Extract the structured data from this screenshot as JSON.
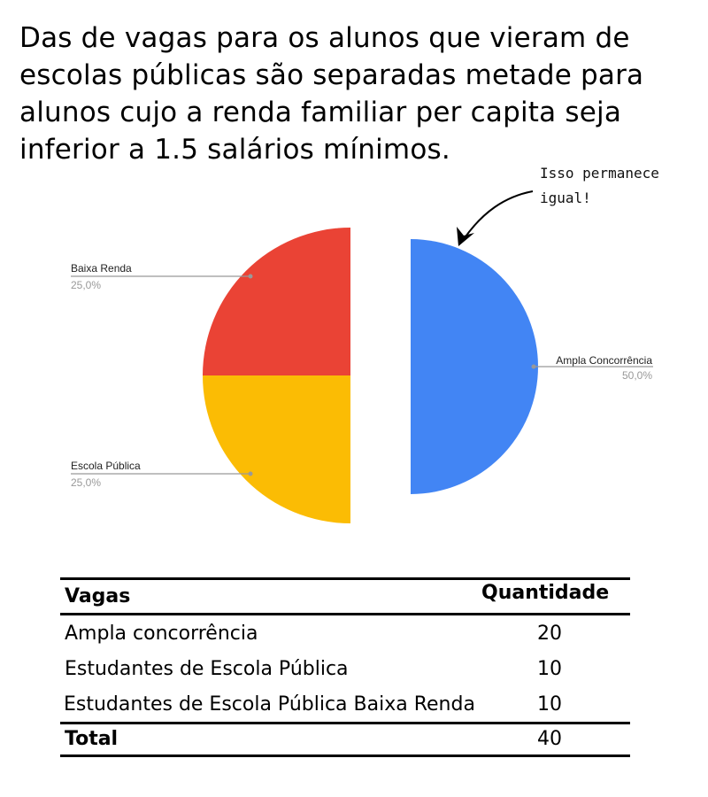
{
  "heading": "Das de vagas para os alunos que vieram de escolas públicas são separadas metade para alunos cujo a renda familiar per capita seja inferior a 1.5 salários mínimos.",
  "chart_data": {
    "type": "pie",
    "slices": [
      {
        "label": "Ampla Concorrência",
        "value": 50.0,
        "pct_label": "50,0%",
        "color": "#4285F4"
      },
      {
        "label": "Baixa Renda",
        "value": 25.0,
        "pct_label": "25,0%",
        "color": "#FBBC04"
      },
      {
        "label": "Escola Pública",
        "value": 25.0,
        "pct_label": "25,0%",
        "color": "#EA4335"
      }
    ],
    "annotation": [
      "Isso permanece",
      "igual!"
    ]
  },
  "table": {
    "headers": [
      "Vagas",
      "Quantidade"
    ],
    "rows": [
      {
        "label": "Ampla concorrência",
        "value": "20"
      },
      {
        "label": "Estudantes de Escola Pública",
        "value": "10"
      },
      {
        "label": "Estudantes de Escola Pública Baixa Renda",
        "value": "10"
      }
    ],
    "total": {
      "label": "Total",
      "value": "40"
    }
  }
}
